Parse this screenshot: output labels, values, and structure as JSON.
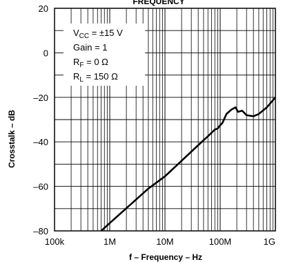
{
  "chart_data": {
    "type": "line",
    "title": "FREQUENCY",
    "xlabel": "f – Frequency – Hz",
    "ylabel": "Crosstalk – dB",
    "x_scale": "log",
    "xlim": [
      100000,
      1000000000
    ],
    "ylim": [
      -80,
      20
    ],
    "x_ticks": [
      {
        "value": 100000,
        "label": "100k"
      },
      {
        "value": 1000000,
        "label": "1M"
      },
      {
        "value": 10000000,
        "label": "10M"
      },
      {
        "value": 100000000,
        "label": "100M"
      },
      {
        "value": 1000000000,
        "label": "1G"
      }
    ],
    "y_ticks": [
      {
        "value": 20,
        "label": "20"
      },
      {
        "value": 0,
        "label": "0"
      },
      {
        "value": -20,
        "label": "–20"
      },
      {
        "value": -40,
        "label": "–40"
      },
      {
        "value": -60,
        "label": "–60"
      },
      {
        "value": -80,
        "label": "–80"
      }
    ],
    "grid": true,
    "annotation": {
      "lines": [
        {
          "main": "V",
          "sub": "CC",
          "rest": " = ±15 V"
        },
        {
          "main": "Gain = 1",
          "sub": "",
          "rest": ""
        },
        {
          "main": "R",
          "sub": "F",
          "rest": " = 0 Ω"
        },
        {
          "main": "R",
          "sub": "L",
          "rest": " = 150 Ω"
        }
      ]
    },
    "series": [
      {
        "x": [
          700000,
          1000000,
          2000000,
          5000000,
          10000000,
          20000000,
          40000000,
          60000000,
          80000000,
          90000000,
          100000000,
          110000000,
          130000000,
          160000000,
          190000000,
          210000000,
          250000000,
          300000000,
          400000000,
          500000000,
          700000000,
          1000000000
        ],
        "y": [
          -80,
          -76.5,
          -69.8,
          -61.0,
          -55.5,
          -48.5,
          -41.5,
          -37.5,
          -34.5,
          -34.0,
          -32.5,
          -31.5,
          -27.5,
          -25.5,
          -24.5,
          -26.5,
          -26.0,
          -28.0,
          -28.5,
          -27.5,
          -24.5,
          -20.0
        ],
        "color": "#000000"
      }
    ]
  }
}
